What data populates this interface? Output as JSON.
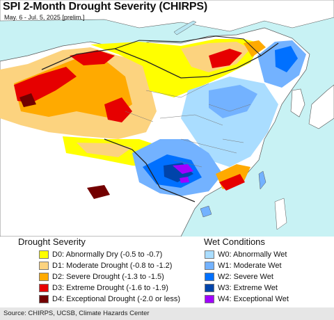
{
  "header": {
    "title": "SPI 2-Month Drought Severity (CHIRPS)",
    "subtitle": "May. 6 - Jul. 5, 2025 [prelim.]"
  },
  "legend": {
    "drought": {
      "heading": "Drought Severity",
      "items": [
        {
          "label": "D0: Abnormally Dry (-0.5 to -0.7)",
          "color": "#ffff00"
        },
        {
          "label": "D1: Moderate Drought (-0.8 to -1.2)",
          "color": "#fcd37f"
        },
        {
          "label": "D2: Severe Drought (-1.3 to -1.5)",
          "color": "#ffaa00"
        },
        {
          "label": "D3: Extreme Drought (-1.6 to -1.9)",
          "color": "#e60000"
        },
        {
          "label": "D4: Exceptional Drought (-2.0 or less)",
          "color": "#730000"
        }
      ]
    },
    "wet": {
      "heading": "Wet Conditions",
      "items": [
        {
          "label": "W0: Abnormally Wet",
          "color": "#aaddff"
        },
        {
          "label": "W1: Moderate Wet",
          "color": "#73b2ff"
        },
        {
          "label": "W2: Severe Wet",
          "color": "#0070ff"
        },
        {
          "label": "W3: Extreme Wet",
          "color": "#0044aa"
        },
        {
          "label": "W4: Exceptional Wet",
          "color": "#a000ff"
        }
      ]
    }
  },
  "footer": {
    "source": "Source: CHIRPS, UCSB, Climate Hazards Center"
  }
}
